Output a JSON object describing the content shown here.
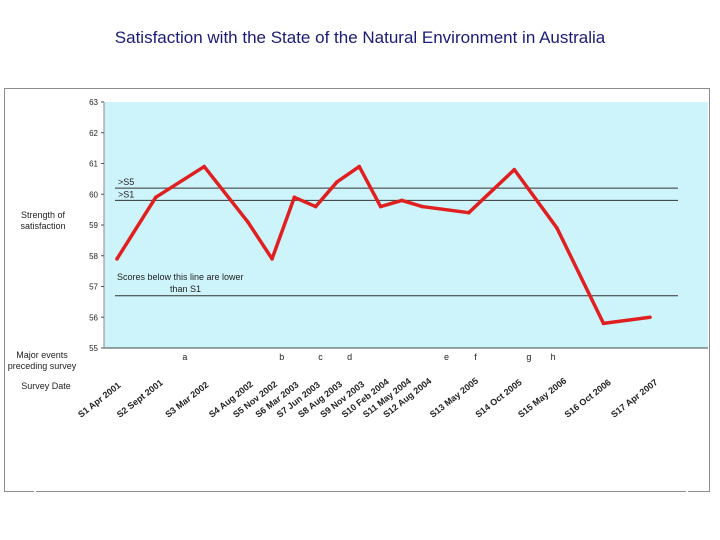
{
  "chart_data": {
    "type": "line",
    "title": "Satisfaction with the State of the Natural Environment in Australia",
    "ylabel": "Strength of satisfaction",
    "ylim": [
      55,
      63
    ],
    "yticks": [
      55,
      56,
      57,
      58,
      59,
      60,
      61,
      62,
      63
    ],
    "yticks_label": [
      "55",
      "56",
      "57",
      "58",
      "59",
      "60",
      "61",
      "62",
      "63"
    ],
    "categories": [
      "S1 Apr 2001",
      "S2 Sept 2001",
      "S3 Mar 2002",
      "S4 Aug 2002",
      "S5 Nov 2002",
      "S6 Mar 2003",
      "S7 Jun 2003",
      "S8 Aug 2003",
      "S9 Nov 2003",
      "S10 Feb 2004",
      "S11 May 2004",
      "S12 Aug 2004",
      "S13 May 2005",
      "S14 Oct 2005",
      "S15 May 2006",
      "S16 Oct 2006",
      "S17 Apr 2007"
    ],
    "x_index": [
      0,
      4,
      9,
      13.5,
      16,
      18.3,
      20.5,
      22.7,
      25,
      27.2,
      29.4,
      31.5,
      36.3,
      41,
      45.4,
      50.2,
      55
    ],
    "series": [
      {
        "name": "Strength of satisfaction",
        "color": "#e02020",
        "values": [
          57.9,
          59.9,
          60.9,
          59.1,
          57.9,
          59.9,
          59.6,
          60.4,
          60.9,
          59.6,
          59.8,
          59.6,
          59.4,
          60.8,
          58.9,
          55.8,
          56.0
        ]
      }
    ],
    "reference_lines": [
      {
        "label": ">S5",
        "value": 60.2
      },
      {
        "label": ">S1",
        "value": 59.8
      },
      {
        "label": "",
        "value": 56.7
      }
    ],
    "annotation": "Scores below this line are lower than S1",
    "event_row_label": "Major events preceding survey",
    "date_row_label": "Survey Date",
    "events": [
      {
        "label": "a",
        "x_index": 7
      },
      {
        "label": "b",
        "x_index": 17
      },
      {
        "label": "c",
        "x_index": 21
      },
      {
        "label": "d",
        "x_index": 24
      },
      {
        "label": "e",
        "x_index": 34
      },
      {
        "label": "f",
        "x_index": 37
      },
      {
        "label": "g",
        "x_index": 42.5
      },
      {
        "label": "h",
        "x_index": 45
      }
    ],
    "colors": {
      "plot_bg": "#cef4fb",
      "line": "#e02020",
      "title": "#1a1a7a",
      "ref_line": "#333333"
    }
  }
}
